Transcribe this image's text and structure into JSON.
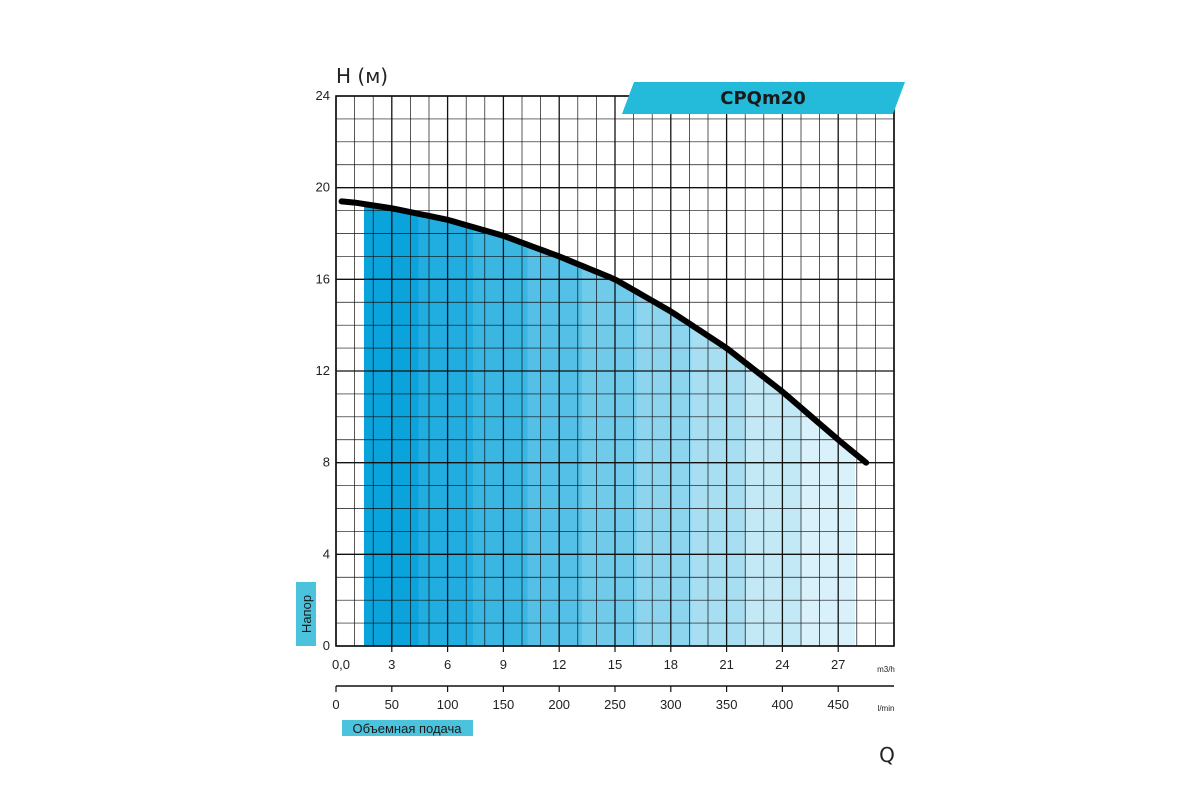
{
  "chart_data": {
    "type": "area",
    "title": "CPQm20",
    "ylabel": "H (м)",
    "y_side_label": "Напор",
    "xlabel": "Q",
    "x_bottom_label": "Объемная подача",
    "y_axis": {
      "min": 0,
      "max": 24,
      "ticks": [
        0,
        4,
        8,
        12,
        16,
        20,
        24
      ]
    },
    "x_axis_m3h": {
      "unit": "m3/h",
      "min": 0,
      "max": 30,
      "ticks": [
        {
          "value": 0,
          "label": "0,0"
        },
        {
          "value": 3,
          "label": "3"
        },
        {
          "value": 6,
          "label": "6"
        },
        {
          "value": 9,
          "label": "9"
        },
        {
          "value": 12,
          "label": "12"
        },
        {
          "value": 15,
          "label": "15"
        },
        {
          "value": 18,
          "label": "18"
        },
        {
          "value": 21,
          "label": "21"
        },
        {
          "value": 24,
          "label": "24"
        },
        {
          "value": 27,
          "label": "27"
        }
      ]
    },
    "x_axis_lmin": {
      "unit": "l/min",
      "min": 0,
      "max": 500,
      "ticks": [
        0,
        50,
        100,
        150,
        200,
        250,
        300,
        350,
        400,
        450
      ]
    },
    "grid": true,
    "series": [
      {
        "x": [
          0.3,
          1,
          3,
          6,
          9,
          12,
          15,
          18,
          21,
          24,
          27,
          28.5
        ],
        "y": [
          19.4,
          19.35,
          19.1,
          18.6,
          17.9,
          17.0,
          16.0,
          14.6,
          13.0,
          11.1,
          9.0,
          8.0
        ]
      }
    ],
    "shaded_range_m3h": [
      1.5,
      27.9
    ],
    "colors": {
      "banner": "#23bbd9",
      "label_box": "#4cc3dc",
      "curve": "#000000",
      "grid": "#111111",
      "fill_bands": [
        "#0aa3dc",
        "#22ade0",
        "#3ab6e3",
        "#55c0e7",
        "#70cbeb",
        "#8dd4ee",
        "#a8def2",
        "#c3e8f6",
        "#d9f1fa"
      ]
    }
  }
}
